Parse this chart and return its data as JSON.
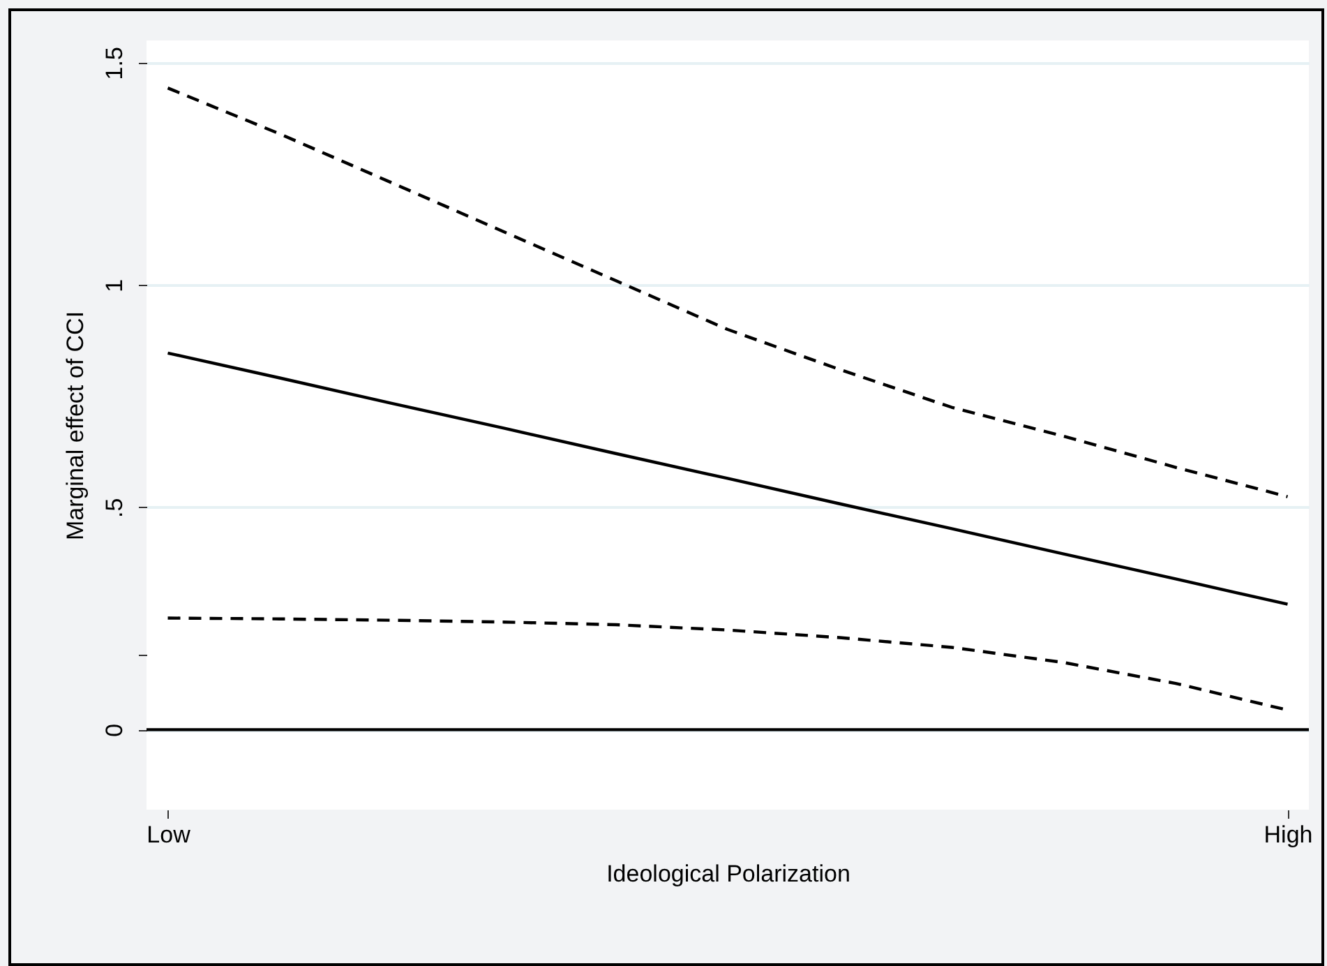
{
  "chart_data": {
    "type": "line",
    "xlabel": "Ideological Polarization",
    "ylabel": "Marginal effect of CCI",
    "categories": [
      "Low",
      null,
      null,
      null,
      null,
      null,
      null,
      null,
      null,
      null,
      "High"
    ],
    "ylim": [
      -0.18,
      1.55
    ],
    "yticks": [
      0,
      {
        "value": 0.17,
        "label": null
      },
      {
        "value": 0.5,
        "label": ".5"
      },
      1,
      1.5
    ],
    "grid": "y",
    "series": [
      {
        "color": "#000000",
        "line_style": "solid",
        "values": [
          0.847,
          0.791,
          0.734,
          0.678,
          0.621,
          0.565,
          0.508,
          0.452,
          0.395,
          0.339,
          0.282
        ]
      },
      {
        "color": "#000000",
        "line_style": "dashed",
        "values": [
          1.443,
          1.34,
          1.23,
          1.12,
          1.01,
          0.9,
          0.81,
          0.725,
          0.66,
          0.59,
          0.524
        ]
      },
      {
        "color": "#000000",
        "line_style": "dashed",
        "values": [
          0.251,
          0.249,
          0.246,
          0.242,
          0.236,
          0.224,
          0.207,
          0.185,
          0.151,
          0.104,
          0.044
        ]
      }
    ],
    "ref_lines": [
      {
        "axis": "y",
        "value": 0,
        "color": "#000000"
      }
    ]
  }
}
